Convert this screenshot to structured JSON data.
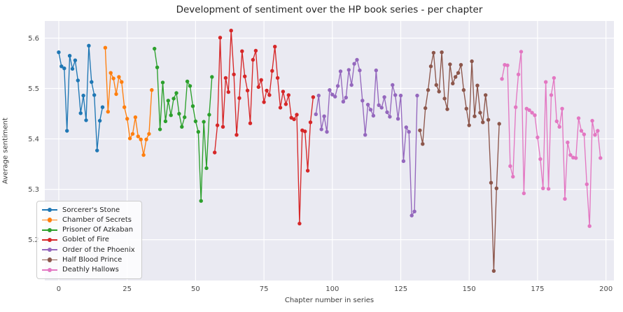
{
  "figure": {
    "title": "Development of sentiment over the HP book series - per chapter",
    "xlabel": "Chapter number in series",
    "ylabel": "Average sentiment"
  },
  "chart_data": {
    "type": "line",
    "title": "Development of sentiment over the HP book series - per chapter",
    "xlabel": "Chapter number in series",
    "ylabel": "Average sentiment",
    "xlim": [
      -5.1,
      202.9
    ],
    "ylim": [
      5.119,
      5.634
    ],
    "xticks": [
      0,
      25,
      50,
      75,
      100,
      125,
      150,
      175,
      200
    ],
    "yticks": [
      5.2,
      5.3,
      5.4,
      5.5,
      5.6
    ],
    "grid": true,
    "plot_background": "#eaeaf2",
    "grid_color": "#ffffff",
    "legend_position": "lower left",
    "marker": "circle",
    "series": [
      {
        "name": "Sorcerer's Stone",
        "color": "#1f77b4",
        "start_x": 0,
        "values": [
          5.572,
          5.544,
          5.54,
          5.416,
          5.565,
          5.539,
          5.556,
          5.516,
          5.451,
          5.486,
          5.437,
          5.585,
          5.513,
          5.487,
          5.377,
          5.436,
          5.463
        ]
      },
      {
        "name": "Chamber of Secrets",
        "color": "#ff7f0e",
        "start_x": 17,
        "values": [
          5.581,
          5.454,
          5.531,
          5.52,
          5.489,
          5.523,
          5.513,
          5.463,
          5.44,
          5.401,
          5.41,
          5.443,
          5.405,
          5.399,
          5.368,
          5.399,
          5.41,
          5.497
        ]
      },
      {
        "name": "Prisoner Of Azkaban",
        "color": "#2ca02c",
        "start_x": 35,
        "values": [
          5.579,
          5.542,
          5.419,
          5.512,
          5.435,
          5.476,
          5.447,
          5.48,
          5.491,
          5.45,
          5.424,
          5.443,
          5.514,
          5.505,
          5.465,
          5.435,
          5.414,
          5.277,
          5.434,
          5.342,
          5.448,
          5.523
        ]
      },
      {
        "name": "Goblet of Fire",
        "color": "#d62728",
        "start_x": 57,
        "values": [
          5.373,
          5.427,
          5.601,
          5.424,
          5.521,
          5.493,
          5.615,
          5.528,
          5.408,
          5.481,
          5.574,
          5.524,
          5.496,
          5.431,
          5.557,
          5.575,
          5.503,
          5.517,
          5.473,
          5.496,
          5.487,
          5.535,
          5.583,
          5.521,
          5.462,
          5.494,
          5.469,
          5.487,
          5.442,
          5.439,
          5.448,
          5.232,
          5.417,
          5.415,
          5.337,
          5.433,
          5.483
        ]
      },
      {
        "name": "Order of the Phoenix",
        "color": "#9467bd",
        "start_x": 94,
        "values": [
          5.449,
          5.486,
          5.419,
          5.445,
          5.414,
          5.497,
          5.488,
          5.484,
          5.505,
          5.534,
          5.474,
          5.482,
          5.537,
          5.507,
          5.549,
          5.557,
          5.536,
          5.476,
          5.408,
          5.468,
          5.458,
          5.446,
          5.536,
          5.467,
          5.462,
          5.483,
          5.453,
          5.444,
          5.507,
          5.487,
          5.44,
          5.486,
          5.356,
          5.423,
          5.414,
          5.248,
          5.256,
          5.486
        ]
      },
      {
        "name": "Half Blood Prince",
        "color": "#8c564b",
        "start_x": 132,
        "values": [
          5.417,
          5.39,
          5.461,
          5.497,
          5.544,
          5.571,
          5.507,
          5.494,
          5.572,
          5.48,
          5.459,
          5.548,
          5.51,
          5.523,
          5.531,
          5.547,
          5.497,
          5.46,
          5.427,
          5.554,
          5.445,
          5.506,
          5.452,
          5.433,
          5.487,
          5.438,
          5.313,
          5.138,
          5.302,
          5.43
        ]
      },
      {
        "name": "Deathly Hallows",
        "color": "#e377c2",
        "start_x": 162,
        "values": [
          5.519,
          5.547,
          5.546,
          5.346,
          5.325,
          5.463,
          5.528,
          5.573,
          5.292,
          5.46,
          5.457,
          5.452,
          5.447,
          5.403,
          5.36,
          5.302,
          5.513,
          5.301,
          5.487,
          5.521,
          5.435,
          5.424,
          5.46,
          5.281,
          5.393,
          5.368,
          5.363,
          5.362,
          5.441,
          5.416,
          5.409,
          5.31,
          5.227,
          5.436,
          5.408,
          5.416,
          5.362
        ]
      }
    ]
  }
}
